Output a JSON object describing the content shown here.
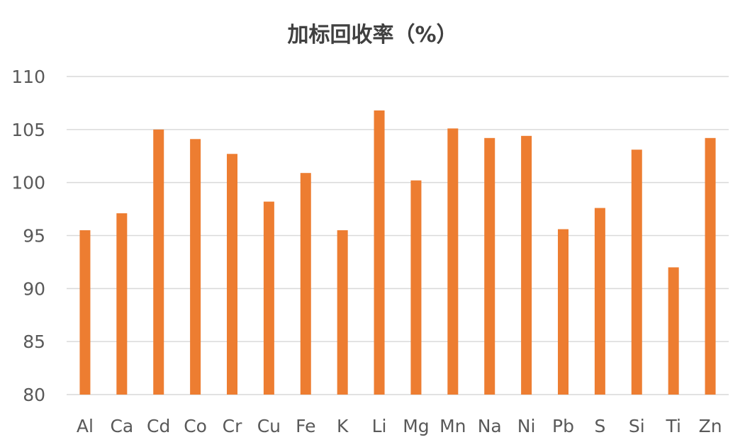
{
  "chart_data": {
    "type": "bar",
    "title": "加标回收率（%）",
    "xlabel": "",
    "ylabel": "",
    "categories": [
      "Al",
      "Ca",
      "Cd",
      "Co",
      "Cr",
      "Cu",
      "Fe",
      "K",
      "Li",
      "Mg",
      "Mn",
      "Na",
      "Ni",
      "Pb",
      "S",
      "Si",
      "Ti",
      "Zn"
    ],
    "values": [
      95.5,
      97.1,
      105.0,
      104.1,
      102.7,
      98.2,
      100.9,
      95.5,
      106.8,
      100.2,
      105.1,
      104.2,
      104.4,
      95.6,
      97.6,
      103.1,
      92.0,
      104.2
    ],
    "ylim": [
      80,
      110
    ],
    "yticks": [
      80,
      85,
      90,
      95,
      100,
      105,
      110
    ],
    "grid": true,
    "legend": "none",
    "bar_color": "#ED7D31",
    "grid_color": "#D9D9D9",
    "text_color": "#595959"
  }
}
